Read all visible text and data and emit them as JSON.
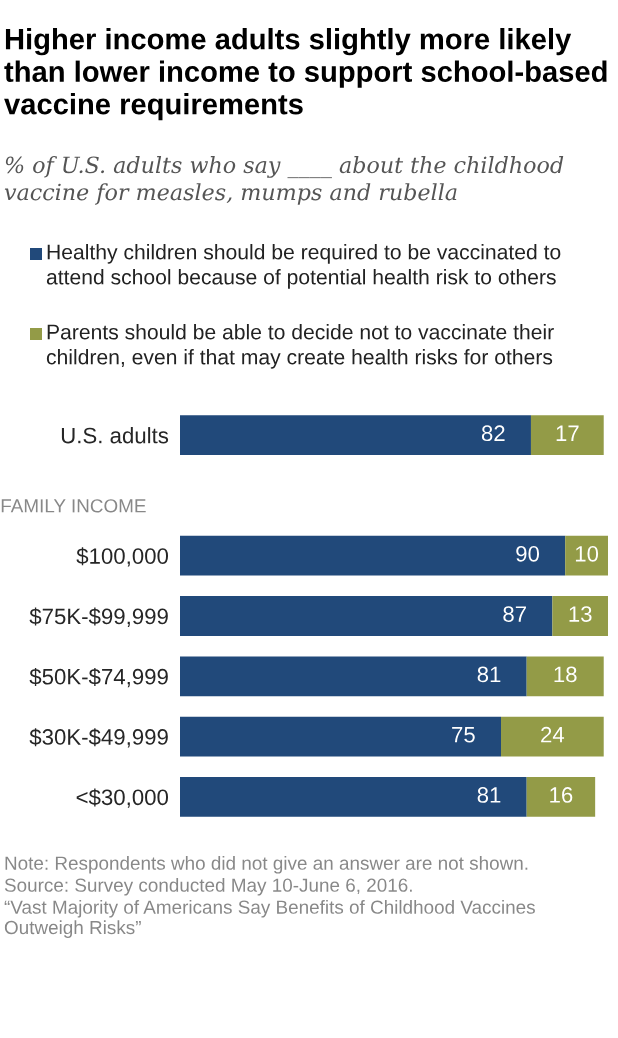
{
  "chart_data": {
    "type": "bar",
    "orientation": "horizontal",
    "stacked": true,
    "data_labels": true,
    "tick_labels": "y",
    "grid": false,
    "legend": "top",
    "title": "Higher income adults slightly more likely than lower income to support school-based vaccine requirements",
    "subtitle": "% of U.S. adults who say ____ about the childhood vaccine for measles, mumps and rubella",
    "categories": [
      "U.S. adults",
      "$100,000",
      "$75K-$99,999",
      "$50K-$74,999",
      "$30K-$49,999",
      "<$30,000"
    ],
    "series": [
      {
        "name": "Healthy children should be required to be vaccinated to attend school because of potential health risk to others",
        "color": "#21497a",
        "values": [
          82,
          90,
          87,
          81,
          75,
          81
        ]
      },
      {
        "name": "Parents should be able to decide not to vaccinate their children, even if that may create health risks for others",
        "color": "#939b47",
        "values": [
          17,
          10,
          13,
          18,
          24,
          16
        ]
      }
    ],
    "annotations": [
      "FAMILY INCOME",
      "Note: Respondents who did not give an answer are not shown.",
      "Source: Survey conducted May 10-June 6, 2016.",
      "“Vast Majority of Americans Say Benefits of Childhood Vaccines Outweigh Risks”"
    ]
  }
}
